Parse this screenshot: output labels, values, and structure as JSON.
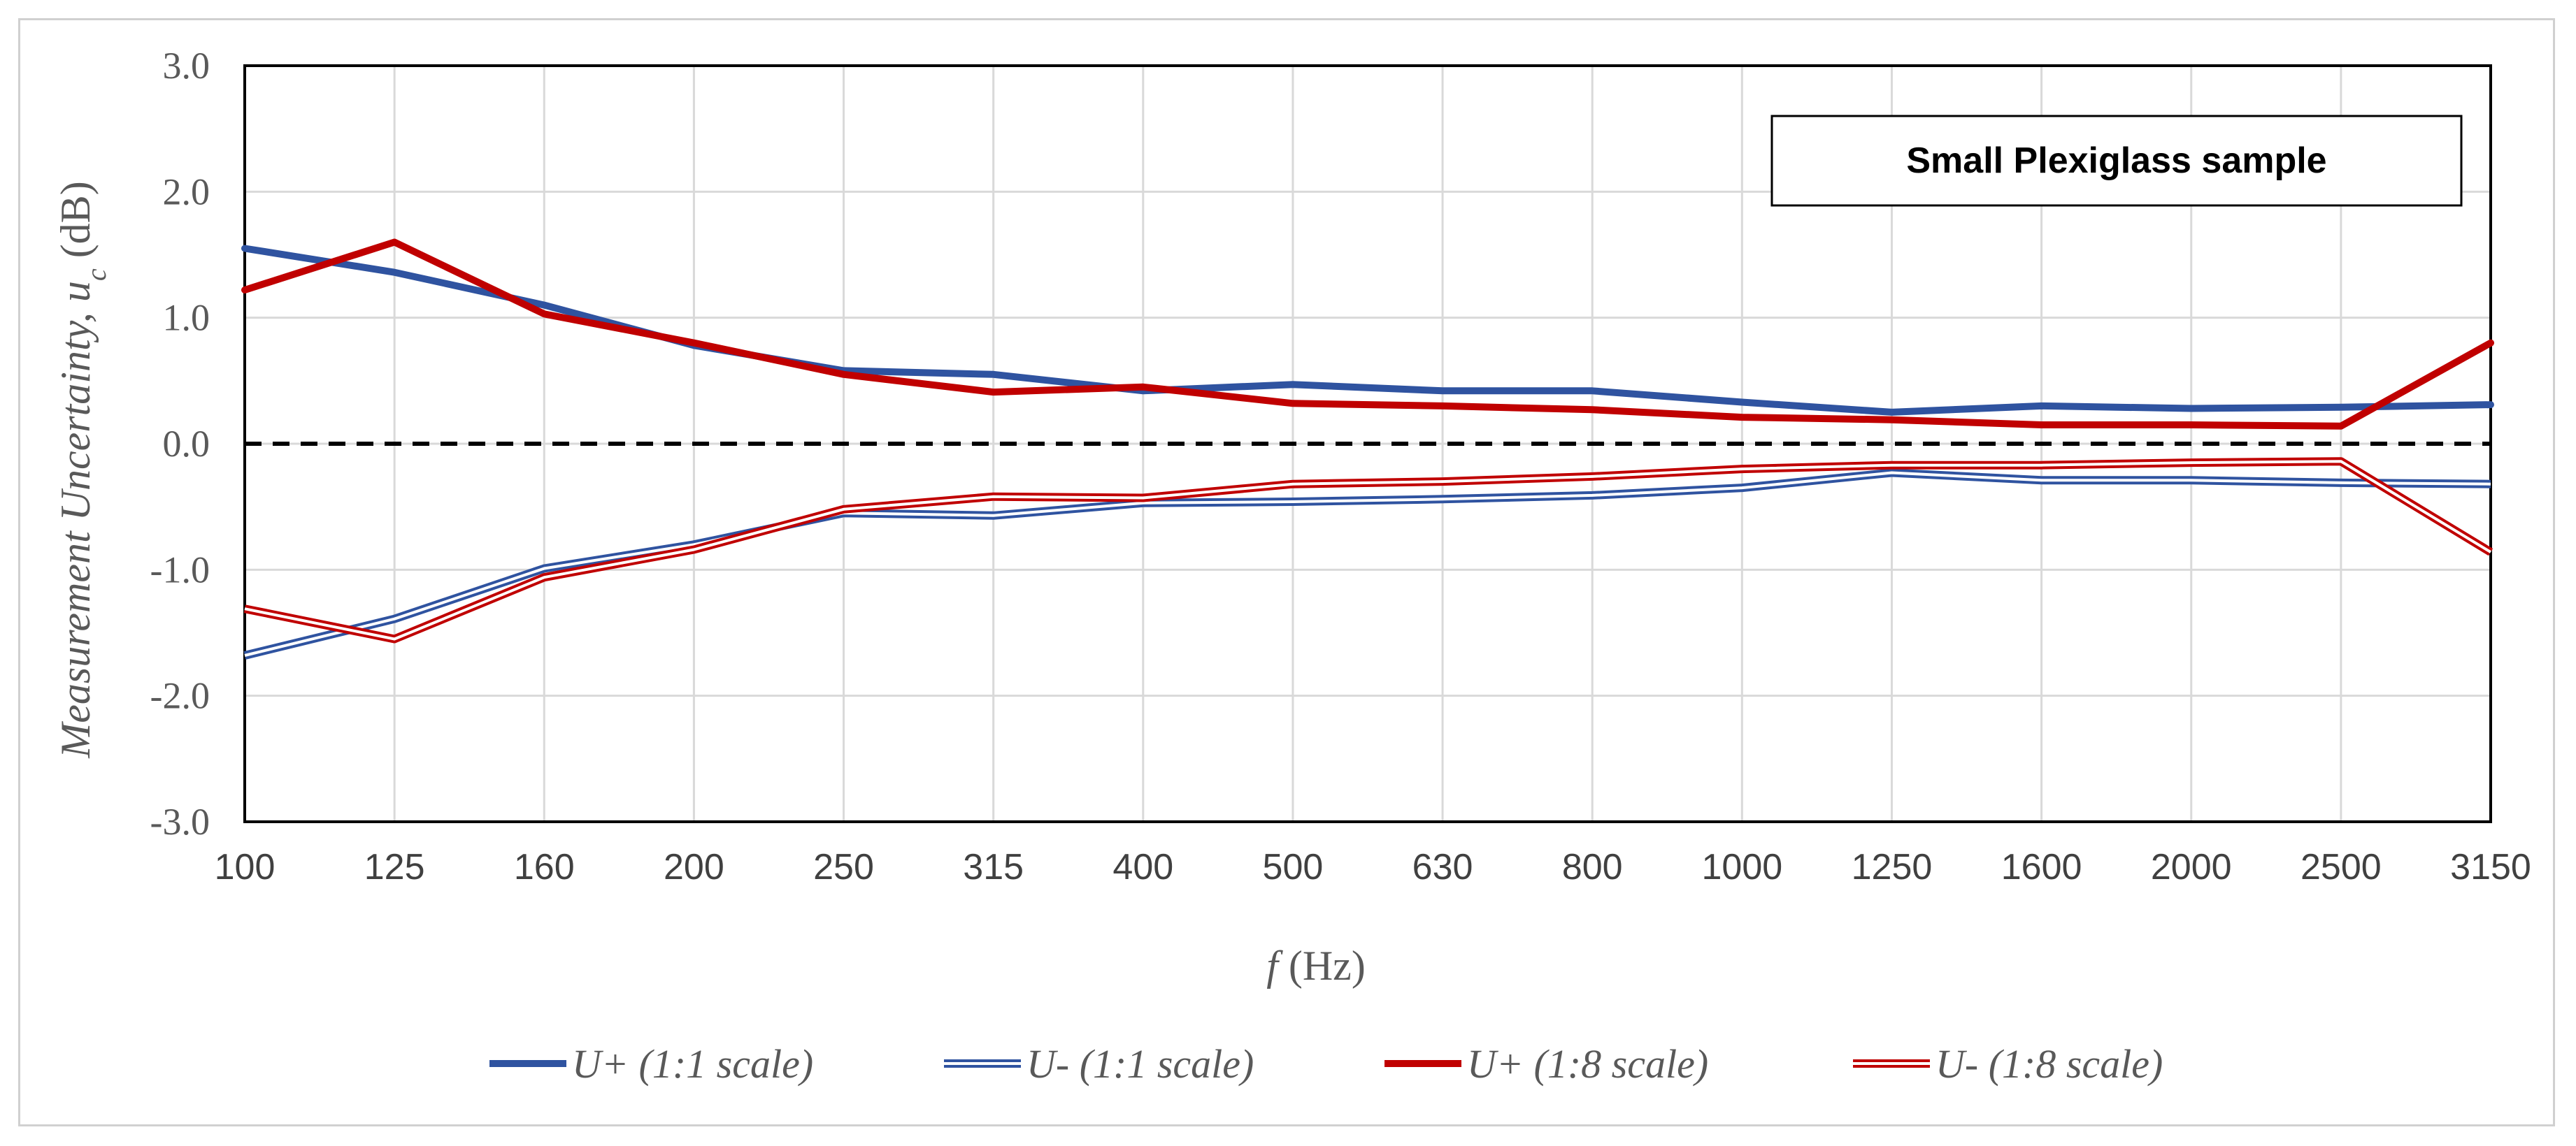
{
  "chart_data": {
    "type": "line",
    "categories": [
      "100",
      "125",
      "160",
      "200",
      "250",
      "315",
      "400",
      "500",
      "630",
      "800",
      "1000",
      "1250",
      "1600",
      "2000",
      "2500",
      "3150"
    ],
    "ylim": [
      -3.0,
      3.0
    ],
    "ytick_values": [
      3.0,
      2.0,
      1.0,
      0.0,
      -1.0,
      -2.0,
      -3.0
    ],
    "ytick_labels": [
      "3.0",
      "2.0",
      "1.0",
      "0.0",
      "-1.0",
      "-2.0",
      "-3.0"
    ],
    "xlabel_italic": "f",
    "xlabel_rest": " (Hz)",
    "ylabel_main": "Measurement Uncertainty, ",
    "ylabel_var": "u",
    "ylabel_sub": "c",
    "ylabel_unit": " (dB)",
    "annotation": "Small Plexiglass sample",
    "reference_line": 0.0,
    "series": [
      {
        "name": "U+ (1:1 scale)",
        "style": "thick",
        "color": "#2f53a0",
        "values": [
          1.55,
          1.36,
          1.1,
          0.78,
          0.58,
          0.55,
          0.42,
          0.47,
          0.42,
          0.42,
          0.33,
          0.25,
          0.3,
          0.28,
          0.29,
          0.31
        ]
      },
      {
        "name": "U- (1:1 scale)",
        "style": "double",
        "color": "#2f53a0",
        "values": [
          -1.68,
          -1.39,
          -0.99,
          -0.8,
          -0.55,
          -0.57,
          -0.47,
          -0.46,
          -0.44,
          -0.41,
          -0.35,
          -0.23,
          -0.29,
          -0.29,
          -0.31,
          -0.32
        ]
      },
      {
        "name": "U+ (1:8 scale)",
        "style": "thick",
        "color": "#c00000",
        "values": [
          1.22,
          1.6,
          1.03,
          0.8,
          0.55,
          0.41,
          0.45,
          0.32,
          0.3,
          0.27,
          0.21,
          0.19,
          0.15,
          0.15,
          0.14,
          0.8
        ]
      },
      {
        "name": "U- (1:8 scale)",
        "style": "double",
        "color": "#c00000",
        "values": [
          -1.31,
          -1.55,
          -1.06,
          -0.84,
          -0.52,
          -0.42,
          -0.43,
          -0.32,
          -0.3,
          -0.26,
          -0.2,
          -0.17,
          -0.17,
          -0.15,
          -0.14,
          -0.86
        ]
      }
    ]
  }
}
